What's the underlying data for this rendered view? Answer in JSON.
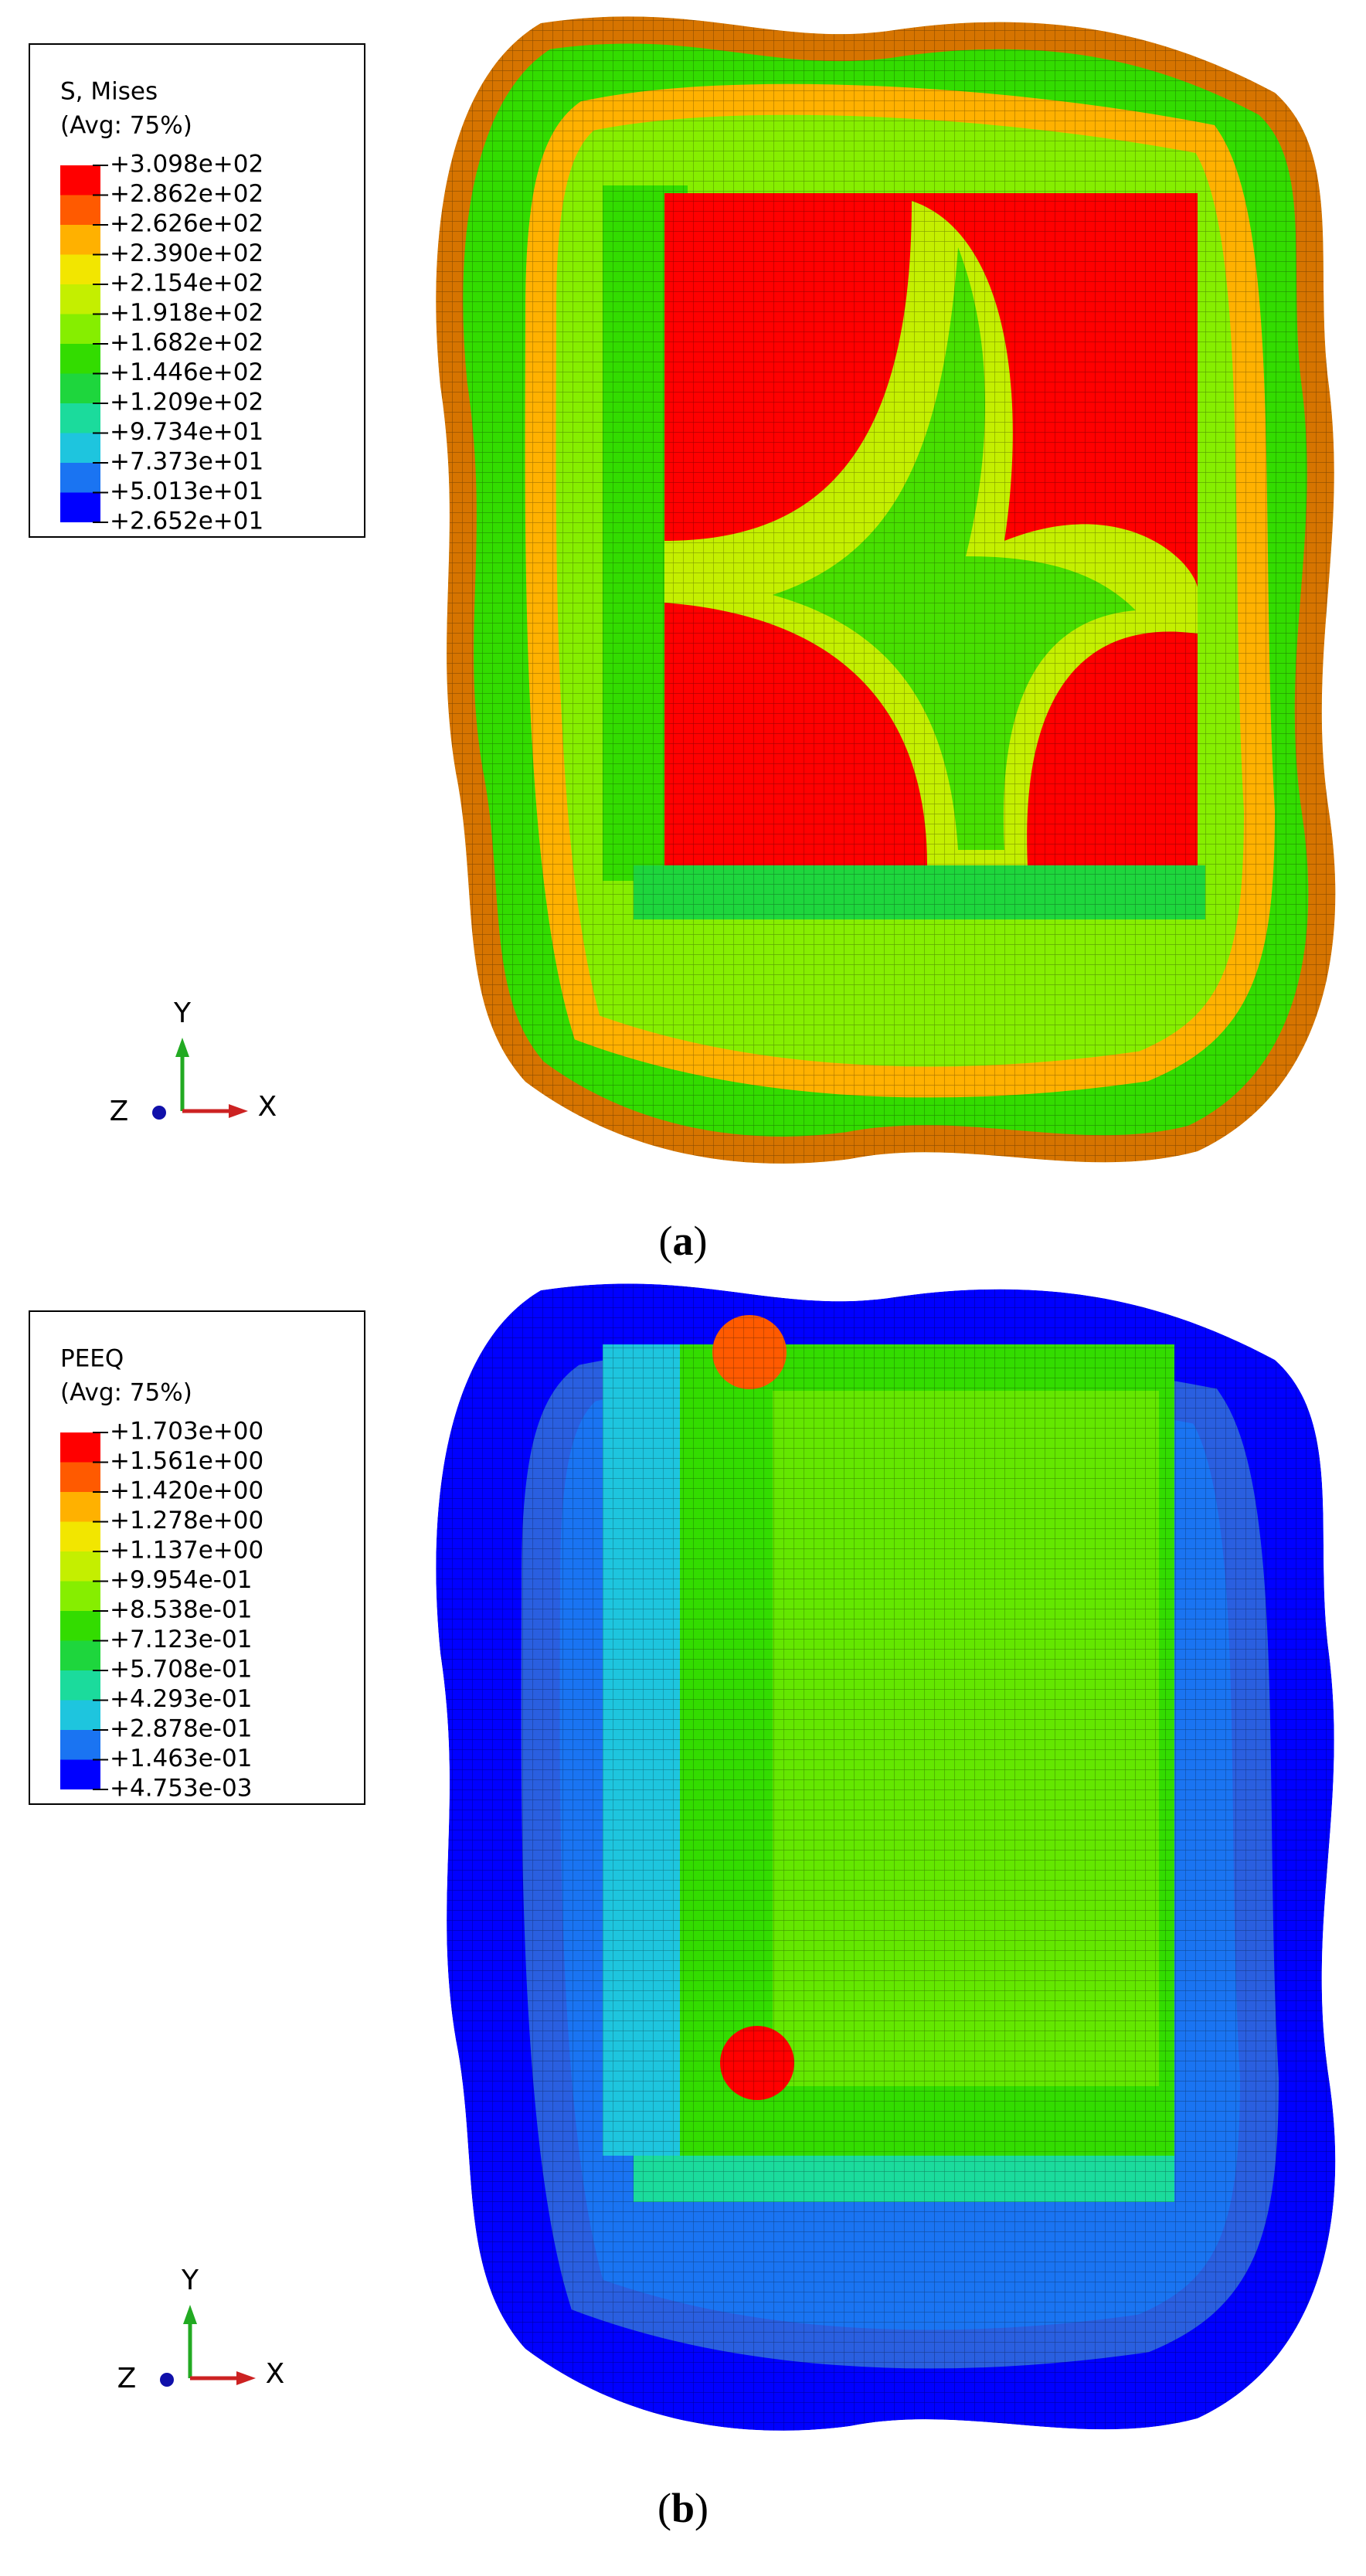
{
  "panels": [
    {
      "legend": {
        "title": "S, Mises",
        "subtitle": "(Avg: 75%)",
        "labels": [
          "+3.098e+02",
          "+2.862e+02",
          "+2.626e+02",
          "+2.390e+02",
          "+2.154e+02",
          "+1.918e+02",
          "+1.682e+02",
          "+1.446e+02",
          "+1.209e+02",
          "+9.734e+01",
          "+7.373e+01",
          "+5.013e+01",
          "+2.652e+01"
        ],
        "colors": [
          "#ff0000",
          "#ff5a00",
          "#ffb100",
          "#f2e600",
          "#c4ef00",
          "#86ee00",
          "#33dc00",
          "#1ed63d",
          "#1bdb9c",
          "#1ec5de",
          "#1a74f2",
          "#0000ff"
        ]
      },
      "triad": {
        "y": "Y",
        "z": "Z",
        "x": "X"
      },
      "caption": [
        "(",
        "a",
        ")"
      ]
    },
    {
      "legend": {
        "title": "PEEQ",
        "subtitle": "(Avg: 75%)",
        "labels": [
          "+1.703e+00",
          "+1.561e+00",
          "+1.420e+00",
          "+1.278e+00",
          "+1.137e+00",
          "+9.954e-01",
          "+8.538e-01",
          "+7.123e-01",
          "+5.708e-01",
          "+4.293e-01",
          "+2.878e-01",
          "+1.463e-01",
          "+4.753e-03"
        ],
        "colors": [
          "#ff0000",
          "#ff5a00",
          "#ffb100",
          "#f2e600",
          "#c4ef00",
          "#86ee00",
          "#33dc00",
          "#1ed63d",
          "#1bdb9c",
          "#1ec5de",
          "#1a74f2",
          "#0000ff"
        ]
      },
      "triad": {
        "y": "Y",
        "z": "Z",
        "x": "X"
      },
      "caption": [
        "(",
        "b",
        ")"
      ]
    }
  ]
}
